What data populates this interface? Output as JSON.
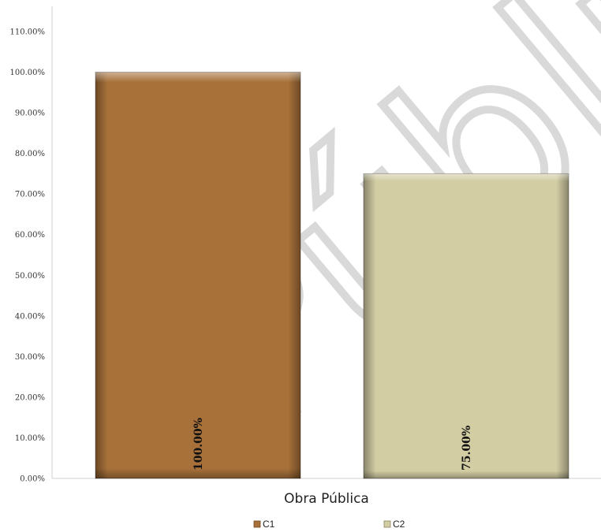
{
  "chart_data": {
    "type": "bar",
    "categories": [
      "Obra Pública"
    ],
    "series": [
      {
        "name": "C1",
        "values": [
          100.0
        ],
        "color": "#A8713A",
        "label": "100.00%"
      },
      {
        "name": "C2",
        "values": [
          75.0
        ],
        "color": "#D3CDA4",
        "label": "75.00%"
      }
    ],
    "yticks": [
      "0.00%",
      "10.00%",
      "20.00%",
      "30.00%",
      "40.00%",
      "50.00%",
      "60.00%",
      "70.00%",
      "80.00%",
      "90.00%",
      "100.00%",
      "110.00%"
    ],
    "ylim": [
      0,
      110
    ],
    "legend_position": "bottom",
    "watermark": "Público"
  }
}
